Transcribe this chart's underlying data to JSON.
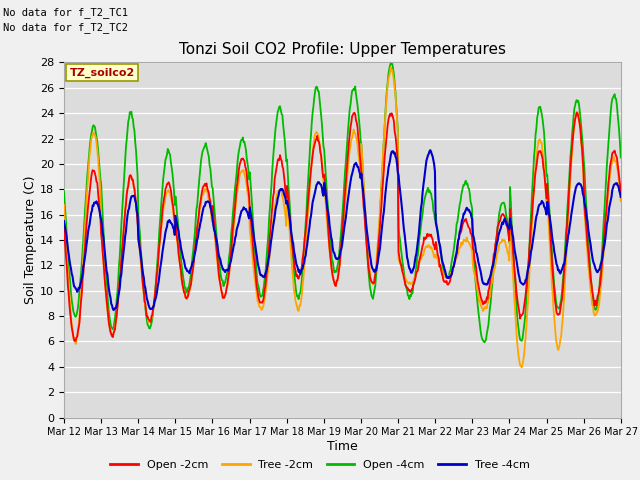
{
  "title": "Tonzi Soil CO2 Profile: Upper Temperatures",
  "xlabel": "Time",
  "ylabel": "Soil Temperature (C)",
  "ylim": [
    0,
    28
  ],
  "yticks": [
    0,
    2,
    4,
    6,
    8,
    10,
    12,
    14,
    16,
    18,
    20,
    22,
    24,
    26,
    28
  ],
  "bg_color": "#dcdcdc",
  "fig_bg": "#f0f0f0",
  "no_data_text1": "No data for f_T2_TC1",
  "no_data_text2": "No data for f_T2_TC2",
  "box_label": "TZ_soilco2",
  "legend_entries": [
    "Open -2cm",
    "Tree -2cm",
    "Open -4cm",
    "Tree -4cm"
  ],
  "legend_colors": [
    "#ff0000",
    "#ffa500",
    "#00bb00",
    "#0000cc"
  ],
  "day_labels": [
    "Mar 12",
    "Mar 13",
    "Mar 14",
    "Mar 15",
    "Mar 16",
    "Mar 17",
    "Mar 18",
    "Mar 19",
    "Mar 20",
    "Mar 21",
    "Mar 22",
    "Mar 23",
    "Mar 24",
    "Mar 25",
    "Mar 26",
    "Mar 27"
  ],
  "open_2cm_mins": [
    6.0,
    6.5,
    7.5,
    9.5,
    9.5,
    9.0,
    11.0,
    10.5,
    10.5,
    10.0,
    10.5,
    9.0,
    8.0,
    8.0,
    9.0
  ],
  "open_2cm_maxs": [
    19.5,
    19.0,
    18.5,
    18.5,
    20.5,
    20.5,
    22.0,
    24.0,
    24.0,
    14.5,
    15.5,
    16.0,
    21.0,
    24.0,
    21.0
  ],
  "tree_2cm_mins": [
    6.0,
    6.5,
    7.5,
    9.5,
    9.5,
    8.5,
    8.5,
    10.5,
    10.5,
    10.5,
    11.0,
    8.5,
    4.0,
    5.5,
    8.0
  ],
  "tree_2cm_maxs": [
    22.5,
    19.0,
    18.0,
    18.0,
    19.5,
    18.0,
    22.5,
    22.5,
    27.5,
    13.5,
    14.0,
    14.0,
    22.0,
    24.0,
    20.5
  ],
  "open_4cm_mins": [
    8.0,
    7.0,
    7.0,
    10.0,
    10.5,
    9.5,
    9.5,
    11.5,
    9.5,
    9.5,
    11.0,
    6.0,
    6.0,
    8.5,
    8.5
  ],
  "open_4cm_maxs": [
    23.0,
    24.0,
    21.0,
    21.5,
    22.0,
    24.5,
    26.0,
    26.0,
    28.0,
    18.0,
    18.5,
    17.0,
    24.5,
    25.0,
    25.5
  ],
  "tree_4cm_mins": [
    10.0,
    8.5,
    8.5,
    11.5,
    11.5,
    11.0,
    11.5,
    12.5,
    11.5,
    11.5,
    11.0,
    10.5,
    10.5,
    11.5,
    11.5
  ],
  "tree_4cm_maxs": [
    17.0,
    17.5,
    15.5,
    17.0,
    16.5,
    18.0,
    18.5,
    20.0,
    21.0,
    21.0,
    16.5,
    15.5,
    17.0,
    18.5,
    18.5
  ]
}
